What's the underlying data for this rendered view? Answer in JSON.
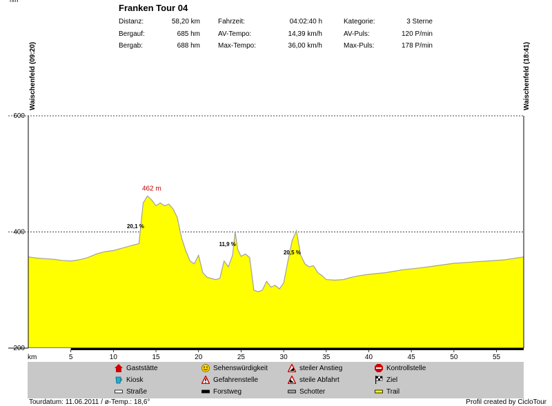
{
  "header": {
    "title": "Franken Tour 04",
    "stats": [
      {
        "label": "Distanz:",
        "value": "58,20 km"
      },
      {
        "label": "Fahrzeit:",
        "value": "04:02:40 h"
      },
      {
        "label": "Kategorie:",
        "value": "3 Sterne"
      },
      {
        "label": "Bergauf:",
        "value": "685 hm"
      },
      {
        "label": "AV-Tempo:",
        "value": "14,39 km/h"
      },
      {
        "label": "AV-Puls:",
        "value": "120 P/min"
      },
      {
        "label": "Bergab:",
        "value": "688 hm"
      },
      {
        "label": "Max-Tempo:",
        "value": "36,00 km/h"
      },
      {
        "label": "Max-Puls:",
        "value": "178 P/min"
      }
    ]
  },
  "start_label": "Waischenfeld (09:20)",
  "end_label": "Waischenfeld (18:41)",
  "chart_data": {
    "type": "area",
    "xlabel": "km",
    "ylabel": "hm",
    "xlim": [
      0,
      58.2
    ],
    "ylim": [
      200,
      600
    ],
    "yticks": [
      200,
      400,
      600
    ],
    "xticks": [
      5,
      10,
      15,
      20,
      25,
      30,
      35,
      40,
      45,
      50,
      55
    ],
    "dashed_gridlines": [
      400,
      600
    ],
    "fill_color": "#ffff00",
    "outline_color": "#a0a0a0",
    "series": [
      {
        "x": [
          0,
          1,
          2,
          3,
          4,
          5,
          6,
          7,
          8,
          9,
          10,
          11,
          12,
          12.5,
          13,
          13.5,
          14,
          14.5,
          15,
          15.5,
          16,
          16.5,
          17,
          17.5,
          18,
          18.5,
          19,
          19.5,
          20,
          20.5,
          21,
          21.5,
          22,
          22.5,
          23,
          23.5,
          24,
          24.3,
          24.6,
          25,
          25.5,
          26,
          26.5,
          27,
          27.5,
          28,
          28.5,
          29,
          29.5,
          30,
          30.5,
          31,
          31.5,
          32,
          32.5,
          33,
          33.5,
          34,
          34.5,
          35,
          36,
          37,
          38,
          39,
          40,
          42,
          44,
          46,
          48,
          50,
          52,
          54,
          56,
          58.2
        ],
        "y": [
          357,
          355,
          354,
          353,
          351,
          350,
          352,
          356,
          362,
          366,
          368,
          372,
          376,
          378,
          380,
          450,
          462,
          455,
          445,
          450,
          445,
          448,
          440,
          425,
          390,
          368,
          350,
          345,
          360,
          330,
          322,
          320,
          318,
          320,
          350,
          340,
          360,
          400,
          370,
          358,
          362,
          356,
          300,
          297,
          300,
          315,
          305,
          308,
          302,
          312,
          350,
          385,
          402,
          360,
          345,
          340,
          342,
          330,
          325,
          318,
          317,
          318,
          322,
          325,
          327,
          330,
          335,
          338,
          342,
          346,
          348,
          350,
          352,
          357
        ]
      }
    ],
    "annotations": [
      {
        "text": "462 m",
        "x": 14.5,
        "y": 462,
        "color": "#c00000"
      },
      {
        "text": "20,1 %",
        "x": 12.6,
        "y": 403,
        "color": "#000000"
      },
      {
        "text": "11,9 %",
        "x": 23.4,
        "y": 372,
        "color": "#000000"
      },
      {
        "text": "20,5 %",
        "x": 31.0,
        "y": 358,
        "color": "#000000"
      }
    ]
  },
  "legend": {
    "items": [
      {
        "label": "Gaststätte",
        "icon": "house-icon"
      },
      {
        "label": "Sehenswürdigkeit",
        "icon": "smiley-icon"
      },
      {
        "label": "steiler Anstieg",
        "icon": "warning-climb-icon"
      },
      {
        "label": "Kontrollstelle",
        "icon": "stop-sign-icon"
      },
      {
        "label": "Kiosk",
        "icon": "cup-icon"
      },
      {
        "label": "Gefahrenstelle",
        "icon": "warning-icon"
      },
      {
        "label": "steile Abfahrt",
        "icon": "warning-descent-icon"
      },
      {
        "label": "Ziel",
        "icon": "checkered-flag-icon"
      },
      {
        "label": "Straße",
        "icon": "road-icon",
        "color": "#ffffff"
      },
      {
        "label": "Forstweg",
        "icon": "forest-track-icon",
        "color": "#000000"
      },
      {
        "label": "Schotter",
        "icon": "gravel-icon",
        "color": "#a0a0a0"
      },
      {
        "label": "Trail",
        "icon": "trail-icon",
        "color": "#ffff00"
      }
    ]
  },
  "footer": {
    "tourdatum": "Tourdatum: 11.06.2011  /  ø-Temp.: 18,6°",
    "credit": "Profil created by CicloTour"
  }
}
